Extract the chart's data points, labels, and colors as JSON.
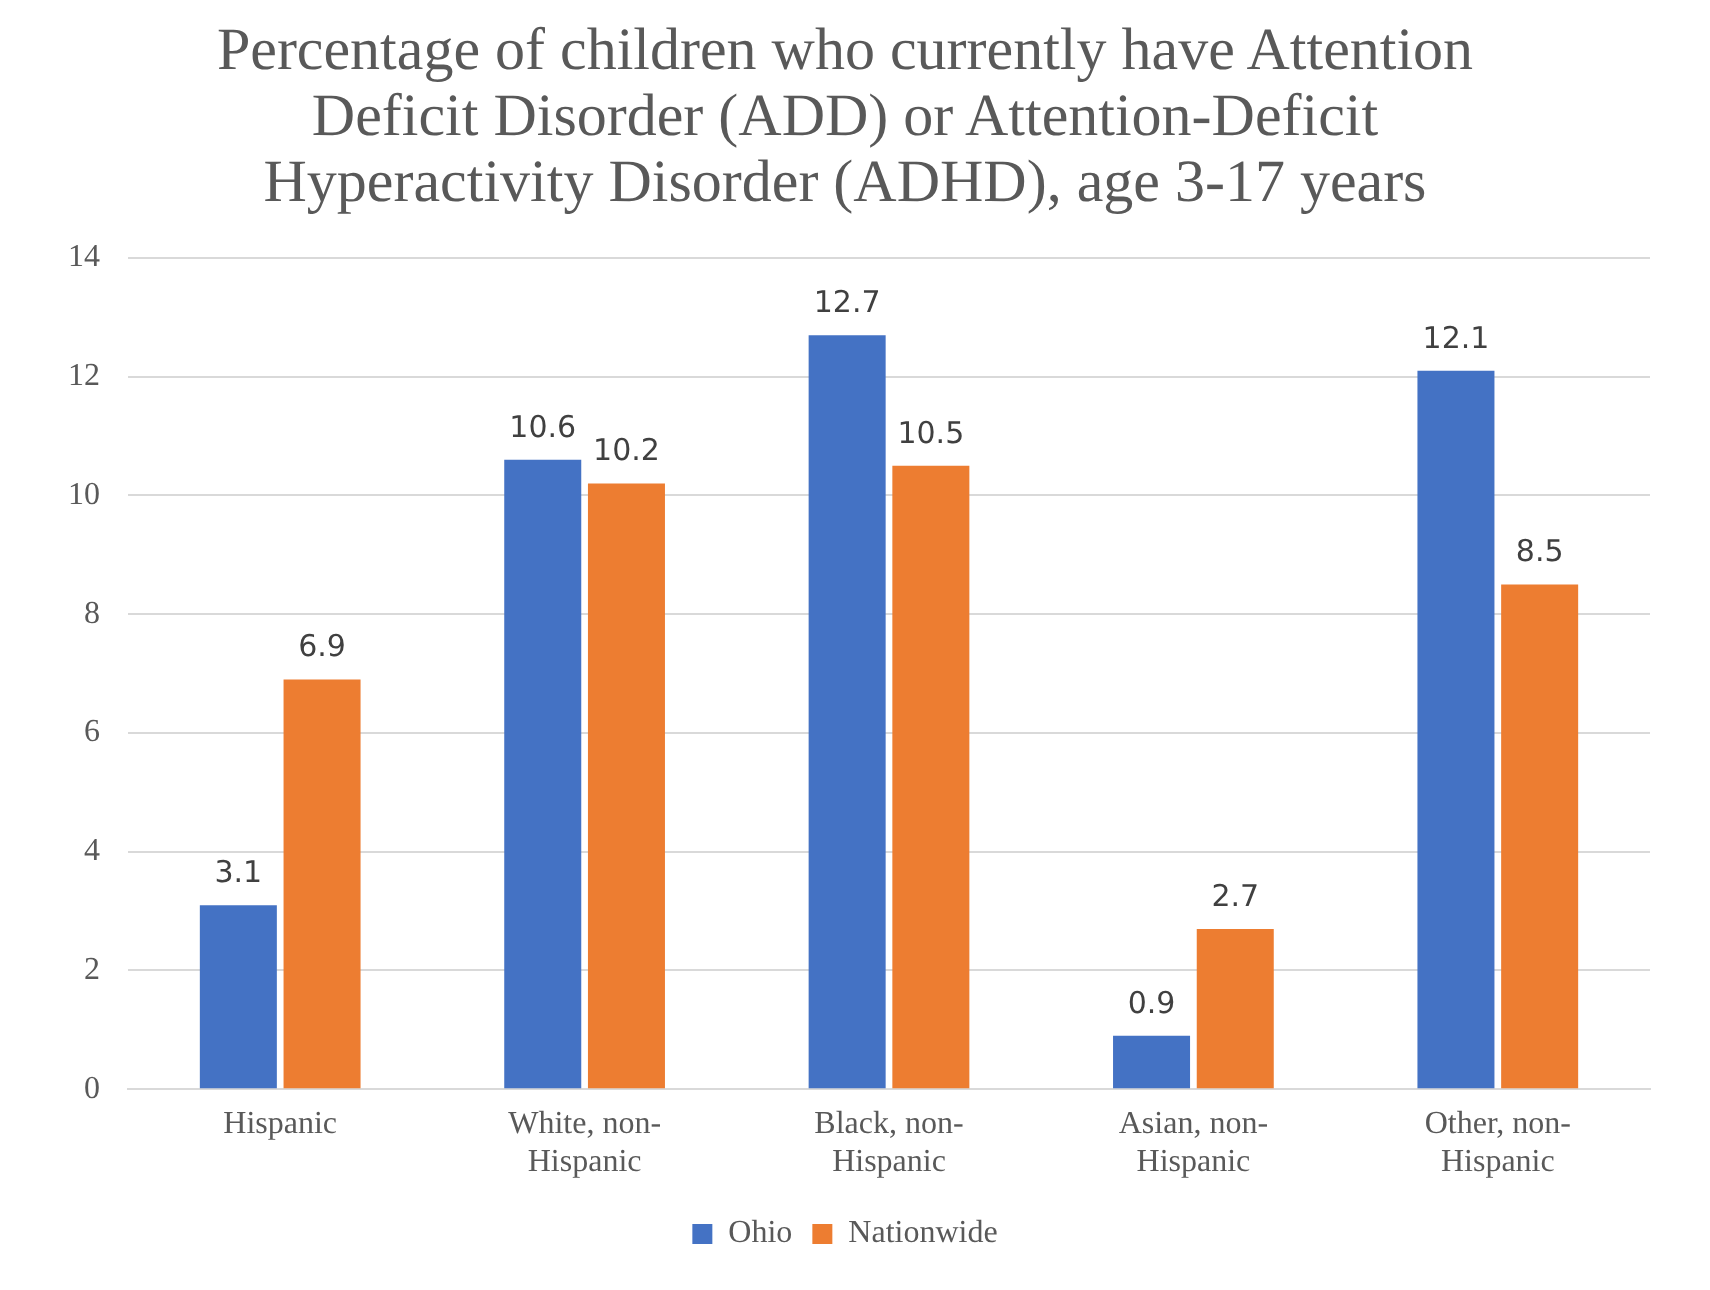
{
  "chart_data": {
    "type": "bar",
    "title": "Percentage of children who currently have Attention Deficit Disorder (ADD) or Attention-Deficit Hyperactivity Disorder (ADHD), age 3-17 years",
    "categories": [
      "Hispanic",
      "White, non-Hispanic",
      "Black, non-Hispanic",
      "Asian, non-Hispanic",
      "Other, non-Hispanic"
    ],
    "series": [
      {
        "name": "Ohio",
        "color": "#4472c4",
        "values": [
          3.1,
          10.6,
          12.7,
          0.9,
          12.1
        ]
      },
      {
        "name": "Nationwide",
        "color": "#ed7d31",
        "values": [
          6.9,
          10.2,
          10.5,
          2.7,
          8.5
        ]
      }
    ],
    "ylim": [
      0,
      14
    ],
    "yticks": [
      0,
      2,
      4,
      6,
      8,
      10,
      12,
      14
    ],
    "grid": "y",
    "legend": "bottom",
    "data_labels": true
  }
}
